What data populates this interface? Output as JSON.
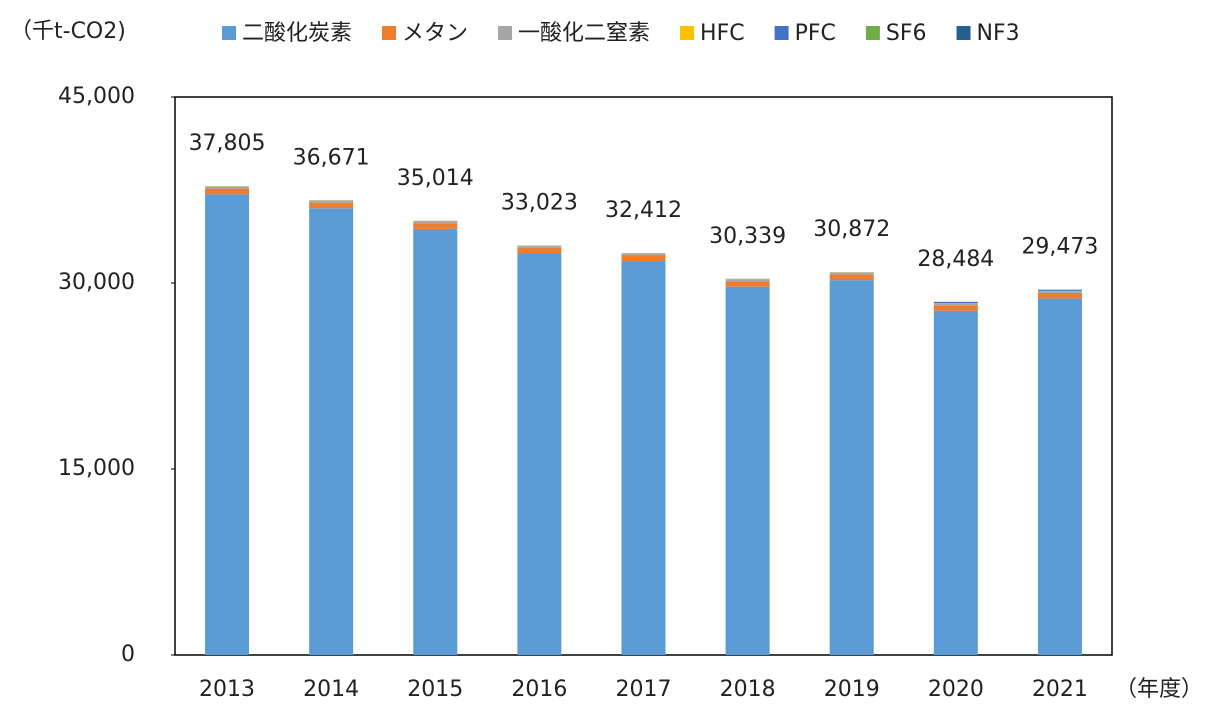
{
  "chart_data": {
    "type": "stacked_bar",
    "y_axis_label": "（千t-CO2)",
    "x_axis_label": "（年度）",
    "categories": [
      "2013",
      "2014",
      "2015",
      "2016",
      "2017",
      "2018",
      "2019",
      "2020",
      "2021"
    ],
    "series": [
      {
        "name": "二酸化炭素",
        "color": "#5b9bd5",
        "values": [
          37160,
          36026,
          34369,
          32378,
          31767,
          29694,
          30227,
          27754,
          28743
        ]
      },
      {
        "name": "メタン",
        "color": "#ed7d31",
        "values": [
          450,
          450,
          450,
          450,
          450,
          450,
          450,
          450,
          450
        ]
      },
      {
        "name": "一酸化二窒素",
        "color": "#a5a5a5",
        "values": [
          150,
          150,
          150,
          150,
          150,
          150,
          150,
          150,
          150
        ]
      },
      {
        "name": "HFC",
        "color": "#ffc000",
        "values": [
          20,
          20,
          20,
          20,
          20,
          20,
          20,
          20,
          20
        ]
      },
      {
        "name": "PFC",
        "color": "#4472c4",
        "values": [
          15,
          15,
          15,
          15,
          15,
          15,
          15,
          100,
          100
        ]
      },
      {
        "name": "SF6",
        "color": "#70ad47",
        "values": [
          5,
          5,
          5,
          5,
          5,
          5,
          5,
          5,
          5
        ]
      },
      {
        "name": "NF3",
        "color": "#255e91",
        "values": [
          5,
          5,
          5,
          5,
          5,
          5,
          5,
          5,
          5
        ]
      }
    ],
    "totals": [
      37805,
      36671,
      35014,
      33023,
      32412,
      30339,
      30872,
      28484,
      29473
    ],
    "total_labels": [
      "37,805",
      "36,671",
      "35,014",
      "33,023",
      "32,412",
      "30,339",
      "30,872",
      "28,484",
      "29,473"
    ],
    "ylim": [
      0,
      45000
    ],
    "yticks": [
      0,
      {
        "value": 15000,
        "label": "15,000"
      },
      {
        "value": 30000,
        "label": "30,000"
      },
      {
        "value": 45000,
        "label": "45,000"
      }
    ],
    "grid": false,
    "legend": "top"
  }
}
